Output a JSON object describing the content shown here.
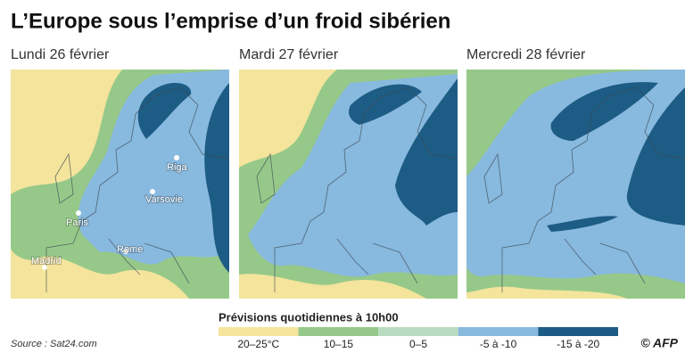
{
  "title": "L’Europe sous l’emprise d’un froid sibérien",
  "panels": [
    {
      "label": "Lundi 26 février",
      "cities": [
        "Riga",
        "Varsovie",
        "Paris",
        "Rome",
        "Madrid"
      ]
    },
    {
      "label": "Mardi 27 février"
    },
    {
      "label": "Mercredi 28 février"
    }
  ],
  "legend": {
    "title": "Prévisions quotidiennes à 10h00",
    "items": [
      {
        "label": "20–25°C",
        "color": "#f4e49c"
      },
      {
        "label": "10–15",
        "color": "#96c989"
      },
      {
        "label": "0–5",
        "color": "#b9dcc0"
      },
      {
        "label": "-5 à -10",
        "color": "#88b9de"
      },
      {
        "label": "-15 à -20",
        "color": "#1d5c84"
      }
    ]
  },
  "source": "Source : Sat24.com",
  "credit": "© AFP"
}
